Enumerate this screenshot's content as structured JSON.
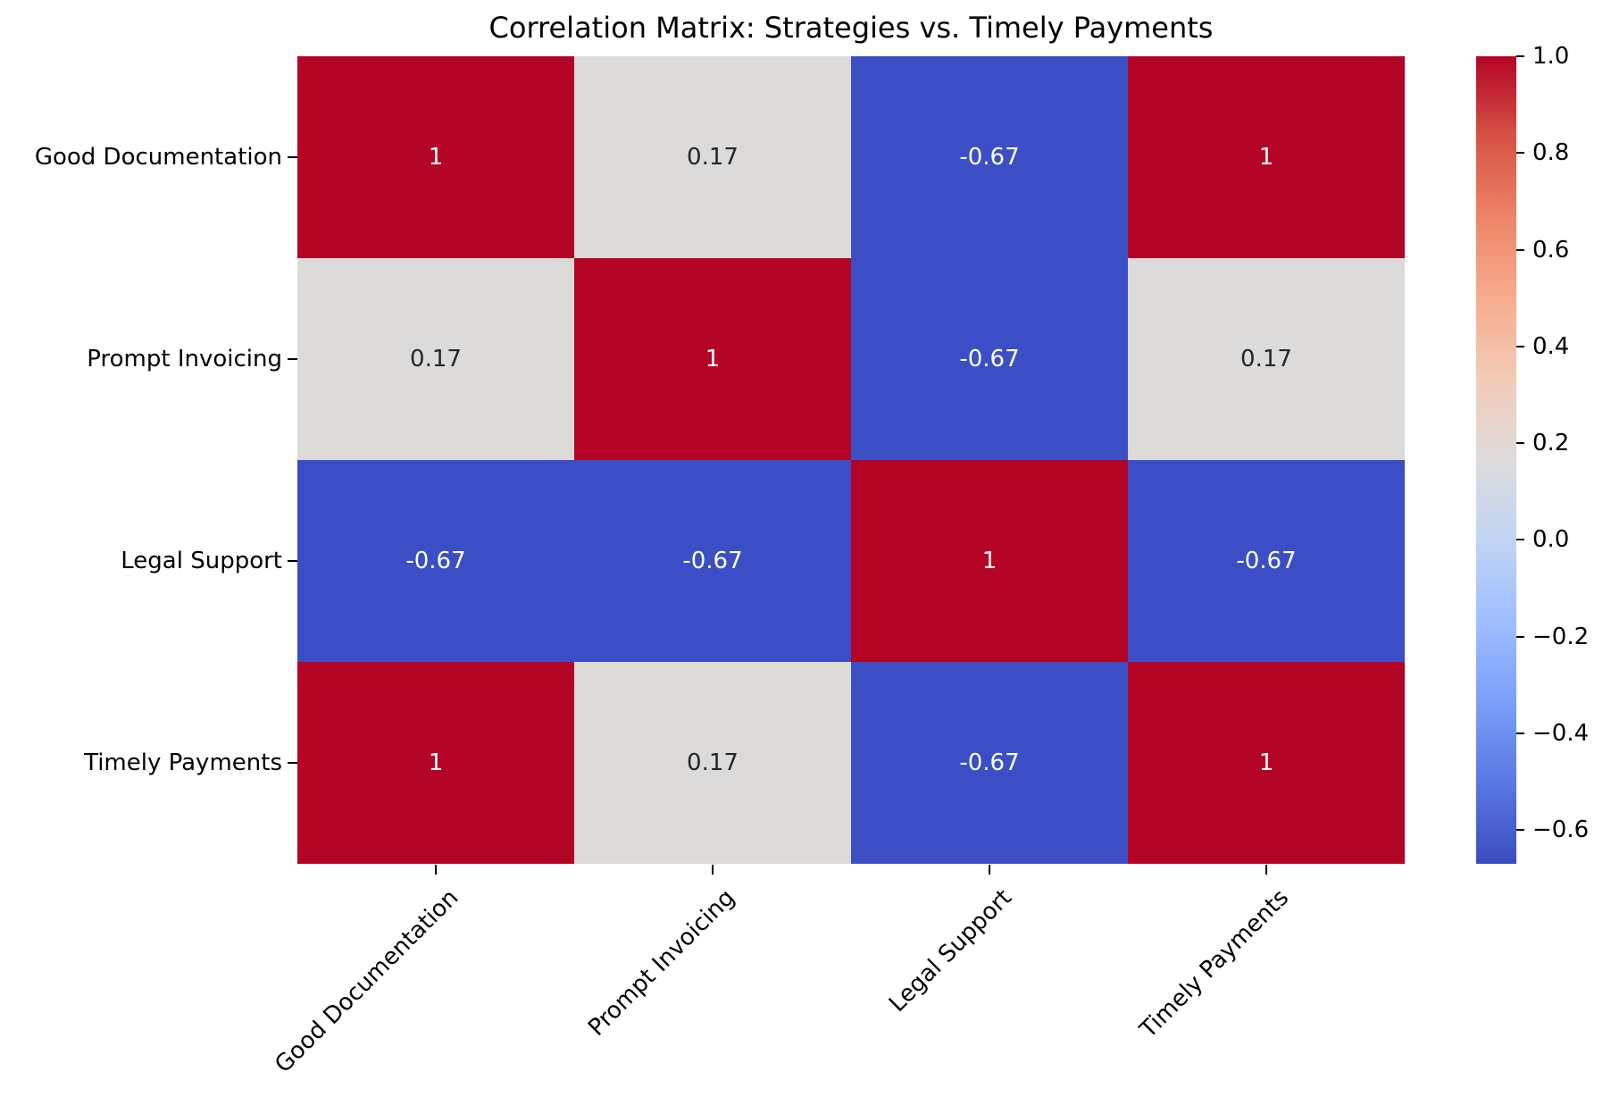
{
  "title": "Correlation Matrix: Strategies vs. Timely Payments",
  "chart_data": {
    "type": "heatmap",
    "title": "Correlation Matrix: Strategies vs. Timely Payments",
    "categories": [
      "Good Documentation",
      "Prompt Invoicing",
      "Legal Support",
      "Timely Payments"
    ],
    "x_categories": [
      "Good Documentation",
      "Prompt Invoicing",
      "Legal Support",
      "Timely Payments"
    ],
    "matrix": [
      [
        1,
        0.17,
        -0.67,
        1
      ],
      [
        0.17,
        1,
        -0.67,
        0.17
      ],
      [
        -0.67,
        -0.67,
        1,
        -0.67
      ],
      [
        1,
        0.17,
        -0.67,
        1
      ]
    ],
    "cell_labels": [
      [
        "1",
        "0.17",
        "-0.67",
        "1"
      ],
      [
        "0.17",
        "1",
        "-0.67",
        "0.17"
      ],
      [
        "-0.67",
        "-0.67",
        "1",
        "-0.67"
      ],
      [
        "1",
        "0.17",
        "-0.67",
        "1"
      ]
    ],
    "colormap": "coolwarm",
    "vmin": -0.67,
    "vmax": 1.0,
    "legend_position": "right-colorbar",
    "grid": false,
    "xlabel": "",
    "ylabel": "",
    "colorbar_tick_labels": [
      "1.0",
      "0.8",
      "0.6",
      "0.4",
      "0.2",
      "0.0",
      "−0.2",
      "−0.4",
      "−0.6"
    ],
    "colorbar_tick_values": [
      1.0,
      0.8,
      0.6,
      0.4,
      0.2,
      0.0,
      -0.2,
      -0.4,
      -0.6
    ]
  },
  "colors": {
    "value_fill": {
      "1": "#b40426",
      "0.17": "#dcdbda",
      "-0.67": "#3b4ec5"
    },
    "value_text": {
      "1": "#ffffff",
      "0.17": "#262626",
      "-0.67": "#ffffff"
    },
    "tick": "#000000",
    "title_text": "#000000",
    "colorbar_stops": [
      {
        "p": 0,
        "c": "#b40426"
      },
      {
        "p": 10,
        "c": "#d65244"
      },
      {
        "p": 20,
        "c": "#ee8468"
      },
      {
        "p": 30,
        "c": "#f7ac8e"
      },
      {
        "p": 40,
        "c": "#f2cbb7"
      },
      {
        "p": 50,
        "c": "#dddcdc"
      },
      {
        "p": 60,
        "c": "#c0d4f5"
      },
      {
        "p": 70,
        "c": "#9ebeff"
      },
      {
        "p": 80,
        "c": "#7b9ff9"
      },
      {
        "p": 90,
        "c": "#5977e3"
      },
      {
        "p": 100,
        "c": "#3b4cc0"
      }
    ]
  }
}
